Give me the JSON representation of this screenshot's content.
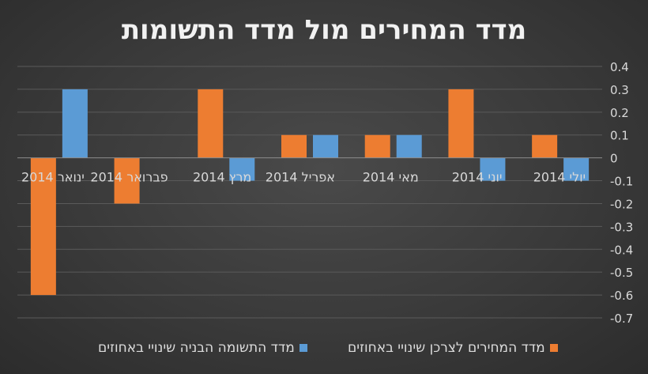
{
  "chart_data": {
    "type": "bar",
    "title": "מדד המחירים מול מדד התשומות",
    "categories": [
      "ינואר 2014",
      "פברואר 2014",
      "מרץ 2014",
      "אפריל 2014",
      "מאי 2014",
      "יוני 2014",
      "יולי 2014"
    ],
    "series": [
      {
        "name": "מדד המחירים לצרכן שינויי באחוזים",
        "color": "#ed7d31",
        "values": [
          -0.6,
          -0.2,
          0.3,
          0.1,
          0.1,
          0.3,
          0.1
        ]
      },
      {
        "name": "מדד התשומה הבניה שינויי באחוזים",
        "color": "#5b9bd5",
        "values": [
          0.3,
          0,
          -0.1,
          0.1,
          0.1,
          -0.1,
          -0.1
        ]
      }
    ],
    "ylim": [
      -0.7,
      0.4
    ],
    "yticks": [
      "0.4",
      "0.3",
      "0.2",
      "0.1",
      "0",
      "-0.1",
      "-0.2",
      "-0.3",
      "-0.4",
      "-0.5",
      "-0.6",
      "-0.7"
    ],
    "grid": true,
    "axis_side": "right",
    "legend_position": "bottom"
  }
}
